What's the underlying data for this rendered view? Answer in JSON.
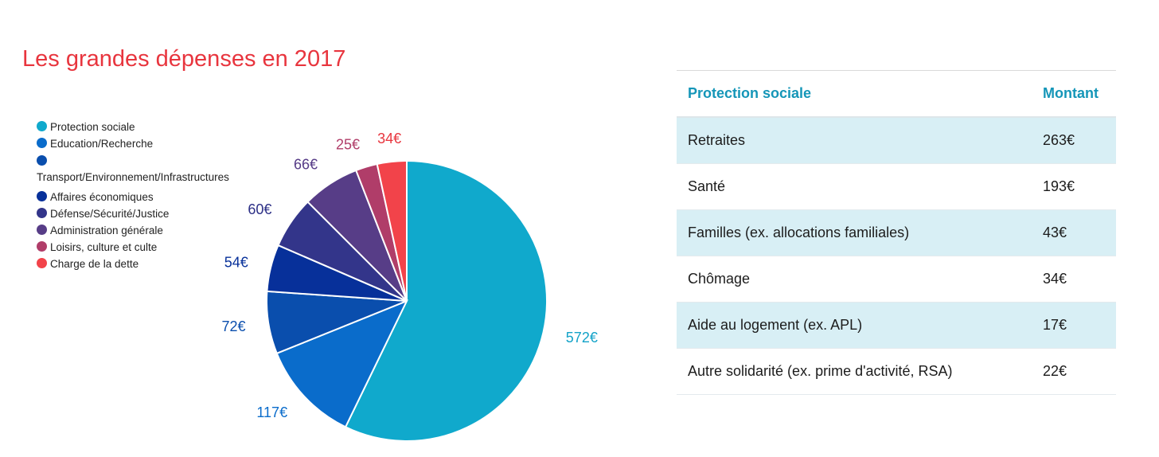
{
  "title": "Les grandes dépenses en 2017",
  "chart_data": {
    "type": "pie",
    "title": "Les grandes dépenses en 2017",
    "unit": "€",
    "labels": [
      "Protection sociale",
      "Education/Recherche",
      "Transport/Environnement/Infrastructures",
      "Affaires économiques",
      "Défense/Sécurité/Justice",
      "Administration générale",
      "Loisirs, culture et culte",
      "Charge de la dette"
    ],
    "values": [
      572,
      117,
      72,
      54,
      60,
      66,
      25,
      34
    ],
    "value_labels": [
      "572€",
      "117€",
      "72€",
      "54€",
      "60€",
      "66€",
      "25€",
      "34€"
    ],
    "colors": [
      "#10a9cc",
      "#0a6ccb",
      "#0a4ead",
      "#07309a",
      "#33358a",
      "#573d87",
      "#b03d69",
      "#f2434a"
    ],
    "label_colors": [
      "#12a2c8",
      "#0a6ccb",
      "#0a4ead",
      "#07309a",
      "#2c2f86",
      "#553a86",
      "#b03d69",
      "#e8353e"
    ],
    "legend_position": "left"
  },
  "table": {
    "headers": [
      "Protection sociale",
      "Montant"
    ],
    "rows": [
      [
        "Retraites",
        "263€"
      ],
      [
        "Santé",
        "193€"
      ],
      [
        "Familles (ex. allocations familiales)",
        "43€"
      ],
      [
        "Chômage",
        "34€"
      ],
      [
        "Aide au logement (ex. APL)",
        "17€"
      ],
      [
        "Autre solidarité (ex. prime d'activité, RSA)",
        "22€"
      ]
    ]
  }
}
